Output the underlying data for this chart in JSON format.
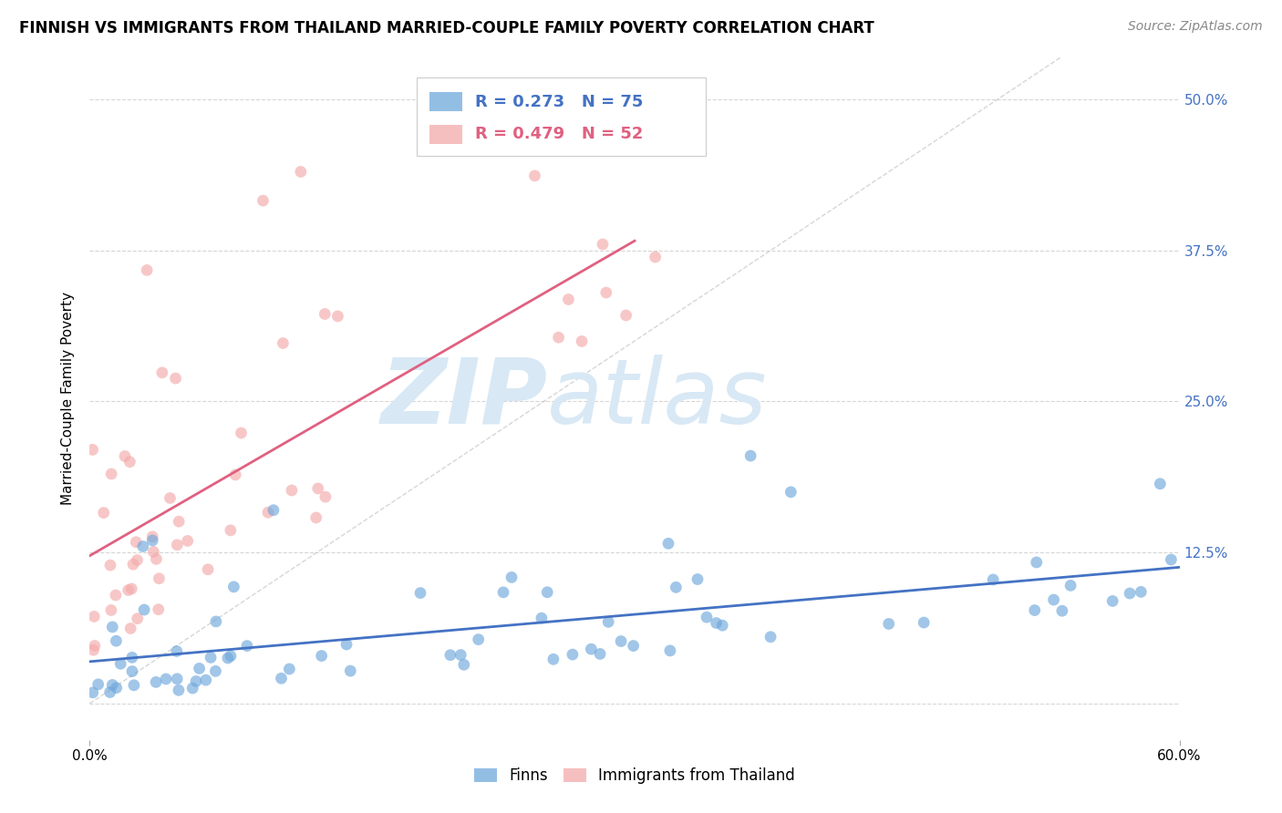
{
  "title": "FINNISH VS IMMIGRANTS FROM THAILAND MARRIED-COUPLE FAMILY POVERTY CORRELATION CHART",
  "source": "Source: ZipAtlas.com",
  "ylabel": "Married-Couple Family Poverty",
  "xlim": [
    0.0,
    0.6
  ],
  "ylim": [
    -0.03,
    0.535
  ],
  "yticks": [
    0.0,
    0.125,
    0.25,
    0.375,
    0.5
  ],
  "yticklabels": [
    "",
    "12.5%",
    "25.0%",
    "37.5%",
    "50.0%"
  ],
  "right_ytick_color": "#4472C4",
  "grid_color": "#CCCCCC",
  "background_color": "#FFFFFF",
  "watermark_zip": "ZIP",
  "watermark_atlas": "atlas",
  "watermark_color": "#D8E8F5",
  "diagonal_line_color": "#BBBBBB",
  "finns_color": "#6FA8DC",
  "thailand_color": "#F4AAAA",
  "finns_line_color": "#4472C4",
  "thailand_line_color": "#E06080",
  "finns_R": 0.273,
  "finns_N": 75,
  "thailand_R": 0.479,
  "thailand_N": 52,
  "legend_finns_label": "Finns",
  "legend_thailand_label": "Immigrants from Thailand",
  "title_fontsize": 12,
  "source_fontsize": 10,
  "axis_label_fontsize": 11,
  "tick_fontsize": 11,
  "watermark_fontsize_zip": 72,
  "watermark_fontsize_atlas": 72
}
